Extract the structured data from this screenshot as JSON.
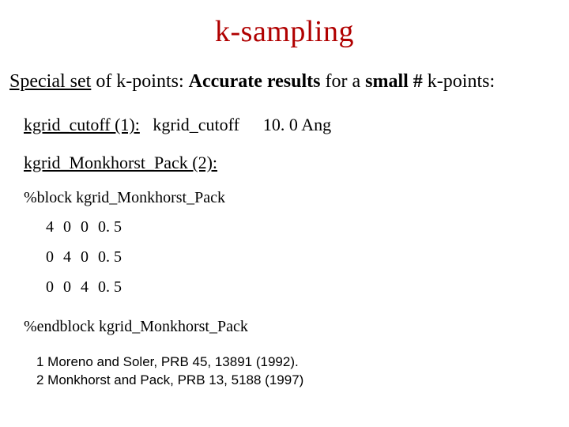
{
  "title": "k-sampling",
  "subtitle": {
    "pre_underlined": "Special set",
    "mid": " of k-points: ",
    "bold": "Accurate results",
    "tail": " for a ",
    "bold2": "small #",
    "tail2": " k-points:"
  },
  "cutoff": {
    "label": "kgrid_cutoff (1):",
    "keyword": "kgrid_cutoff",
    "value": "10. 0 Ang"
  },
  "mp": {
    "label": "kgrid_Monkhorst_Pack (2):",
    "block_start": "%block kgrid_Monkhorst_Pack",
    "rows": [
      [
        "4",
        "0",
        "0",
        "0. 5"
      ],
      [
        "0",
        "4",
        "0",
        "0. 5"
      ],
      [
        "0",
        "0",
        "4",
        "0. 5"
      ]
    ],
    "block_end": "%endblock kgrid_Monkhorst_Pack"
  },
  "refs": {
    "r1": "1 Moreno and Soler, PRB 45, 13891 (1992).",
    "r2": "2 Monkhorst and Pack, PRB 13, 5188 (1997)"
  },
  "colors": {
    "title": "#b00000",
    "text": "#000000",
    "background": "#ffffff"
  },
  "font_sizes": {
    "title": 38,
    "subtitle": 24,
    "line": 22,
    "block_hdr": 20,
    "matrix": 20,
    "refs": 17
  }
}
